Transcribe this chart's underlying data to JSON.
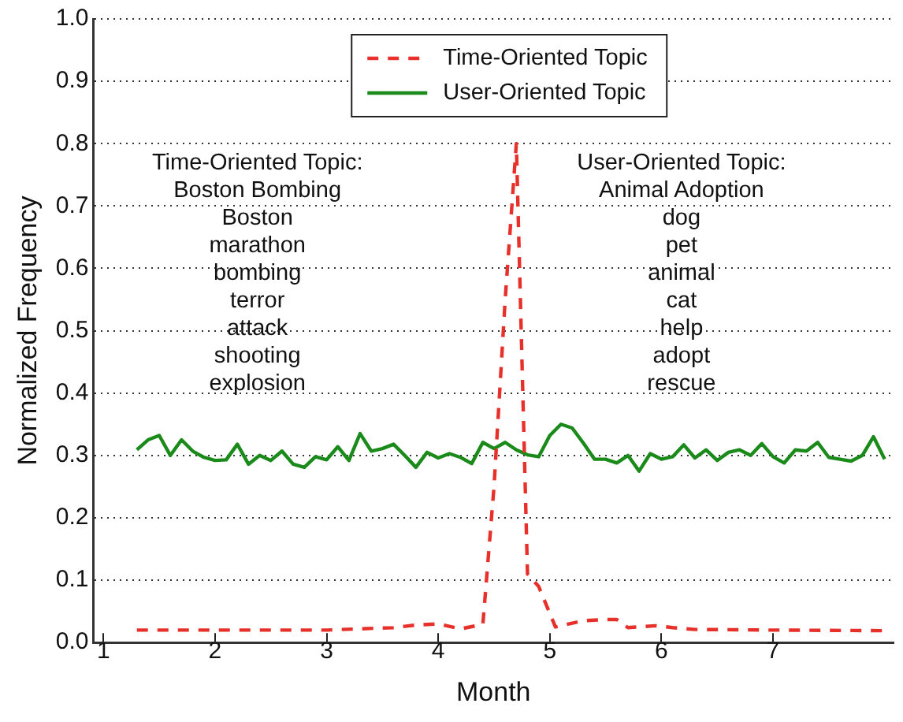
{
  "chart_data": {
    "type": "line",
    "xlabel": "Month",
    "ylabel": "Normalized Frequency",
    "xlim": [
      0.91,
      8.08
    ],
    "xticks": [
      1,
      2,
      3,
      4,
      5,
      6,
      7
    ],
    "ylim": [
      0,
      1
    ],
    "yticks": [
      {
        "value": 0,
        "label": "0.0"
      },
      0.1,
      0.2,
      0.3,
      0.4,
      0.5,
      0.6,
      0.7,
      0.8,
      0.9,
      {
        "value": 1,
        "label": "1.0"
      }
    ],
    "grid": "y",
    "legend": "top",
    "marker": "none",
    "annotations": [
      "Time-Oriented Topic:\nBoston Bombing\nBoston\nmarathon\nbombing\nterror\nattack\nshooting\nexplosion",
      "User-Oriented Topic:\nAnimal Adoption\ndog\npet\nanimal\ncat\nhelp\nadopt\nrescue"
    ],
    "series": [
      {
        "name": "Time-Oriented Topic",
        "color": "#e8302a",
        "line_style": "dashed",
        "x": [
          1.3,
          2.0,
          3.0,
          3.3,
          3.6,
          3.8,
          4.0,
          4.2,
          4.4,
          4.5,
          4.6,
          4.7,
          4.8,
          4.9,
          5.05,
          5.3,
          5.5,
          5.6,
          5.7,
          5.95,
          6.1,
          6.3,
          7.0,
          8.0
        ],
        "values": [
          0.02,
          0.02,
          0.02,
          0.022,
          0.024,
          0.028,
          0.03,
          0.022,
          0.029,
          0.25,
          0.55,
          0.8,
          0.11,
          0.09,
          0.025,
          0.035,
          0.037,
          0.037,
          0.024,
          0.027,
          0.024,
          0.021,
          0.02,
          0.019
        ]
      },
      {
        "name": "User-Oriented Topic",
        "color": "#1a8a1a",
        "line_style": "solid",
        "x": [
          1.3,
          1.4,
          1.5,
          1.6,
          1.7,
          1.8,
          1.9,
          2.0,
          2.1,
          2.2,
          2.3,
          2.4,
          2.5,
          2.6,
          2.7,
          2.8,
          2.9,
          3.0,
          3.1,
          3.2,
          3.3,
          3.4,
          3.5,
          3.6,
          3.7,
          3.8,
          3.9,
          4.0,
          4.1,
          4.2,
          4.3,
          4.4,
          4.5,
          4.6,
          4.7,
          4.8,
          4.9,
          5.0,
          5.1,
          5.2,
          5.3,
          5.4,
          5.5,
          5.6,
          5.7,
          5.8,
          5.9,
          6.0,
          6.1,
          6.2,
          6.3,
          6.4,
          6.5,
          6.6,
          6.7,
          6.8,
          6.9,
          7.0,
          7.1,
          7.2,
          7.3,
          7.4,
          7.5,
          7.6,
          7.7,
          7.8,
          7.9,
          8.0
        ],
        "values": [
          0.309,
          0.325,
          0.332,
          0.3,
          0.325,
          0.307,
          0.297,
          0.292,
          0.293,
          0.318,
          0.286,
          0.3,
          0.292,
          0.307,
          0.286,
          0.281,
          0.298,
          0.293,
          0.314,
          0.292,
          0.335,
          0.307,
          0.311,
          0.318,
          0.3,
          0.281,
          0.305,
          0.296,
          0.303,
          0.297,
          0.287,
          0.321,
          0.311,
          0.321,
          0.309,
          0.301,
          0.298,
          0.332,
          0.35,
          0.344,
          0.32,
          0.294,
          0.294,
          0.288,
          0.3,
          0.275,
          0.303,
          0.294,
          0.298,
          0.317,
          0.296,
          0.309,
          0.292,
          0.305,
          0.309,
          0.3,
          0.319,
          0.298,
          0.288,
          0.309,
          0.307,
          0.321,
          0.297,
          0.294,
          0.291,
          0.3,
          0.33,
          0.294
        ]
      }
    ]
  }
}
